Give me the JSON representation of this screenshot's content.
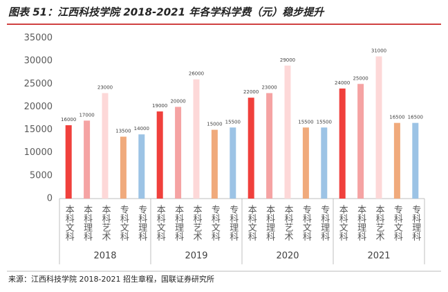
{
  "chart_data": {
    "type": "bar",
    "title": "图表 51：江西科技学院 2018-2021 年各学科学费（元）稳步提升",
    "source": "来源：江西科技学院 2018-2021 招生章程，国联证券研究所",
    "categories": [
      "2018",
      "2019",
      "2020",
      "2021"
    ],
    "series": [
      {
        "name": "本科文科",
        "color": "#f0403c",
        "values": [
          16000,
          19000,
          22000,
          24000
        ]
      },
      {
        "name": "本科理科",
        "color": "#f5a3a3",
        "values": [
          17000,
          20000,
          23000,
          25000
        ]
      },
      {
        "name": "本科艺术",
        "color": "#fdd8d8",
        "values": [
          23000,
          26000,
          29000,
          31000
        ]
      },
      {
        "name": "专科文科",
        "color": "#f0aa7c",
        "values": [
          13500,
          15000,
          15500,
          16500
        ]
      },
      {
        "name": "专科理科",
        "color": "#9cc3e5",
        "values": [
          14000,
          15500,
          15500,
          16500
        ]
      }
    ],
    "ylim": [
      0,
      35000
    ],
    "yticks": [
      0,
      5000,
      10000,
      15000,
      20000,
      25000,
      30000,
      35000
    ]
  }
}
